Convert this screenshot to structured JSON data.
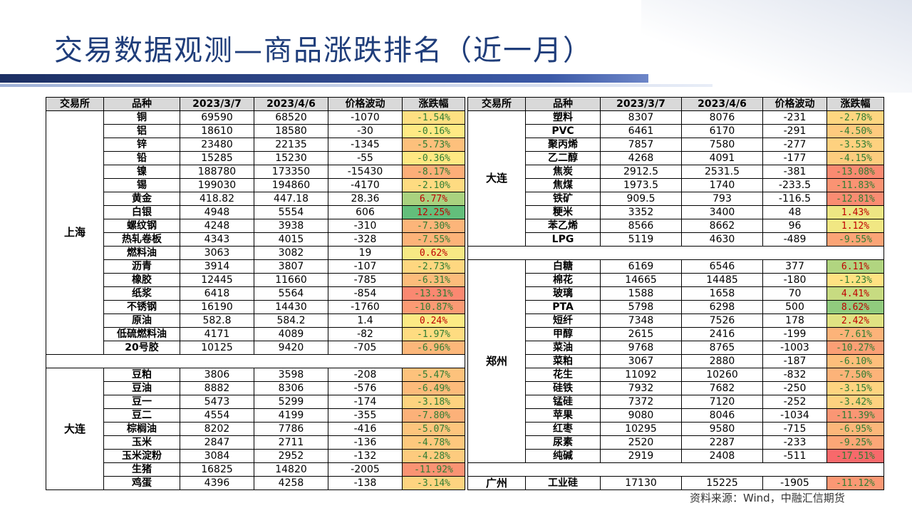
{
  "title": "交易数据观测—商品涨跌排名（近一月）",
  "source": "资料来源：Wind，中融汇信期货",
  "headers_left": [
    "交易所",
    "品种",
    "2023/3/7",
    "2023/4/6",
    "价格波动",
    "涨跌幅"
  ],
  "headers_right": [
    "交易所",
    "品种",
    "2023/3/7",
    "2023/4/6",
    "价格波动",
    "涨跌幅"
  ],
  "left_groups": [
    {
      "exchange": "上海",
      "rows": [
        [
          "铜",
          "69590",
          "68520",
          "-1070",
          "-1.54%"
        ],
        [
          "铝",
          "18610",
          "18580",
          "-30",
          "-0.16%"
        ],
        [
          "锌",
          "23480",
          "22135",
          "-1345",
          "-5.73%"
        ],
        [
          "铅",
          "15285",
          "15230",
          "-55",
          "-0.36%"
        ],
        [
          "镍",
          "188780",
          "173350",
          "-15430",
          "-8.17%"
        ],
        [
          "锡",
          "199030",
          "194860",
          "-4170",
          "-2.10%"
        ],
        [
          "黄金",
          "418.82",
          "447.18",
          "28.36",
          "6.77%"
        ],
        [
          "白银",
          "4948",
          "5554",
          "606",
          "12.25%"
        ],
        [
          "螺纹钢",
          "4248",
          "3938",
          "-310",
          "-7.30%"
        ],
        [
          "热轧卷板",
          "4343",
          "4015",
          "-328",
          "-7.55%"
        ],
        [
          "燃料油",
          "3063",
          "3082",
          "19",
          "0.62%"
        ],
        [
          "沥青",
          "3914",
          "3807",
          "-107",
          "-2.73%"
        ],
        [
          "橡胶",
          "12445",
          "11660",
          "-785",
          "-6.31%"
        ],
        [
          "纸浆",
          "6418",
          "5564",
          "-854",
          "-13.31%"
        ],
        [
          "不锈钢",
          "16190",
          "14430",
          "-1760",
          "-10.87%"
        ],
        [
          "原油",
          "582.8",
          "584.2",
          "1.4",
          "0.24%"
        ],
        [
          "低硫燃料油",
          "4171",
          "4089",
          "-82",
          "-1.97%"
        ],
        [
          "20号胶",
          "10125",
          "9420",
          "-705",
          "-6.96%"
        ]
      ]
    },
    {
      "exchange": "大连",
      "rows": [
        [
          "豆粕",
          "3806",
          "3598",
          "-208",
          "-5.47%"
        ],
        [
          "豆油",
          "8882",
          "8306",
          "-576",
          "-6.49%"
        ],
        [
          "豆一",
          "5473",
          "5299",
          "-174",
          "-3.18%"
        ],
        [
          "豆二",
          "4554",
          "4199",
          "-355",
          "-7.80%"
        ],
        [
          "棕榈油",
          "8202",
          "7786",
          "-416",
          "-5.07%"
        ],
        [
          "玉米",
          "2847",
          "2711",
          "-136",
          "-4.78%"
        ],
        [
          "玉米淀粉",
          "3084",
          "2952",
          "-132",
          "-4.28%"
        ],
        [
          "生猪",
          "16825",
          "14820",
          "-2005",
          "-11.92%"
        ],
        [
          "鸡蛋",
          "4396",
          "4258",
          "-138",
          "-3.14%"
        ]
      ]
    }
  ],
  "right_groups": [
    {
      "exchange": "大连",
      "rows": [
        [
          "塑料",
          "8307",
          "8076",
          "-231",
          "-2.78%"
        ],
        [
          "PVC",
          "6461",
          "6170",
          "-291",
          "-4.50%"
        ],
        [
          "聚丙烯",
          "7857",
          "7580",
          "-277",
          "-3.53%"
        ],
        [
          "乙二醇",
          "4268",
          "4091",
          "-177",
          "-4.15%"
        ],
        [
          "焦炭",
          "2912.5",
          "2531.5",
          "-381",
          "-13.08%"
        ],
        [
          "焦煤",
          "1973.5",
          "1740",
          "-233.5",
          "-11.83%"
        ],
        [
          "铁矿",
          "909.5",
          "793",
          "-116.5",
          "-12.81%"
        ],
        [
          "粳米",
          "3352",
          "3400",
          "48",
          "1.43%"
        ],
        [
          "苯乙烯",
          "8566",
          "8662",
          "96",
          "1.12%"
        ],
        [
          "LPG",
          "5119",
          "4630",
          "-489",
          "-9.55%"
        ]
      ]
    },
    {
      "exchange": "郑州",
      "rows": [
        [
          "白糖",
          "6169",
          "6546",
          "377",
          "6.11%"
        ],
        [
          "棉花",
          "14665",
          "14485",
          "-180",
          "-1.23%"
        ],
        [
          "玻璃",
          "1588",
          "1658",
          "70",
          "4.41%"
        ],
        [
          "PTA",
          "5798",
          "6298",
          "500",
          "8.62%"
        ],
        [
          "短纤",
          "7348",
          "7526",
          "178",
          "2.42%"
        ],
        [
          "甲醇",
          "2615",
          "2416",
          "-199",
          "-7.61%"
        ],
        [
          "菜油",
          "9768",
          "8765",
          "-1003",
          "-10.27%"
        ],
        [
          "菜粕",
          "3067",
          "2880",
          "-187",
          "-6.10%"
        ],
        [
          "花生",
          "11092",
          "10260",
          "-832",
          "-7.50%"
        ],
        [
          "硅铁",
          "7932",
          "7682",
          "-250",
          "-3.15%"
        ],
        [
          "锰硅",
          "7372",
          "7120",
          "-252",
          "-3.42%"
        ],
        [
          "苹果",
          "9080",
          "8046",
          "-1034",
          "-11.39%"
        ],
        [
          "红枣",
          "10295",
          "9580",
          "-715",
          "-6.95%"
        ],
        [
          "尿素",
          "2520",
          "2287",
          "-233",
          "-9.25%"
        ],
        [
          "纯碱",
          "2919",
          "2408",
          "-511",
          "-17.51%"
        ]
      ]
    },
    {
      "exchange": "广州",
      "rows": [
        [
          "工业硅",
          "17130",
          "15225",
          "-1905",
          "-11.12%"
        ]
      ]
    }
  ],
  "color_scale": {
    "min": -17.51,
    "max": 12.25,
    "low": "#f8696b",
    "mid": "#ffeb84",
    "high": "#63be7b"
  }
}
